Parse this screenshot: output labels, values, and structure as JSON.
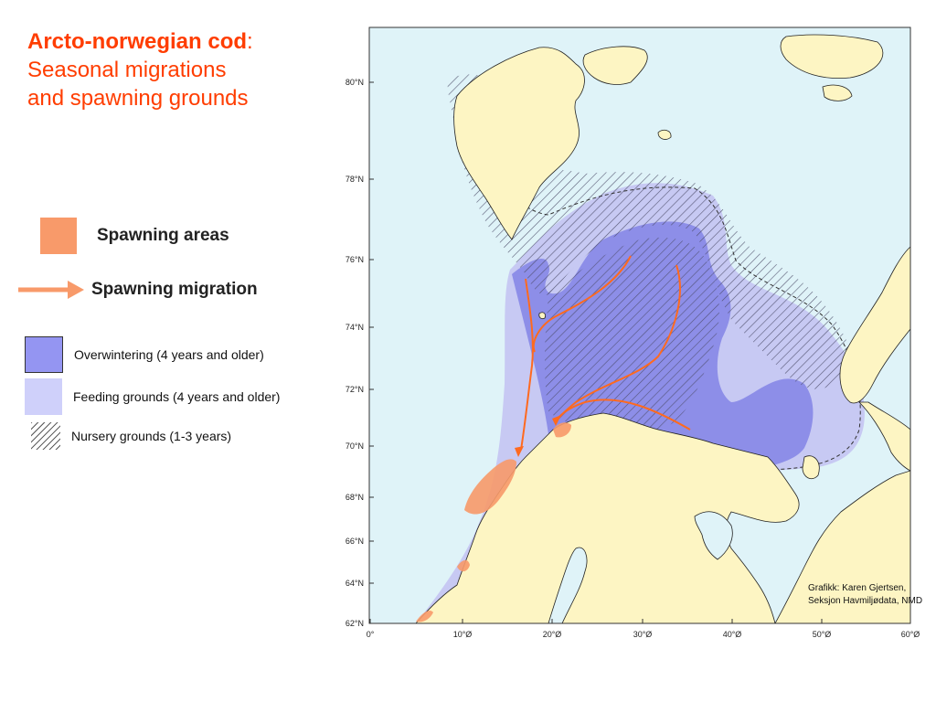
{
  "title": {
    "species": "Arcto-norwegian cod",
    "colon": ":",
    "line2": "Seasonal migrations",
    "line3": "and spawning grounds"
  },
  "legend": {
    "spawning_areas": "Spawning areas",
    "spawning_migration": "Spawning migration",
    "overwintering": "Overwintering (4 years and older)",
    "feeding": "Feeding grounds (4 years and older)",
    "nursery": "Nursery grounds (1-3 years)"
  },
  "colors": {
    "sea": "#dff3f8",
    "land": "#fdf5c3",
    "spawning": "#f89a6a",
    "migration_arrow": "#ff6a1f",
    "overwintering": "#8d8ee8",
    "feeding": "#c7c8f2"
  },
  "map": {
    "lat_ticks": [
      "80°N",
      "78°N",
      "76°N",
      "74°N",
      "72°N",
      "70°N",
      "68°N",
      "66°N",
      "64°N",
      "62°N"
    ],
    "lon_ticks": [
      "0°",
      "10°Ø",
      "20°Ø",
      "30°Ø",
      "40°Ø",
      "50°Ø",
      "60°Ø"
    ],
    "credit_line1": "Grafikk: Karen Gjertsen,",
    "credit_line2": "Seksjon Havmiljødata, NMD"
  }
}
